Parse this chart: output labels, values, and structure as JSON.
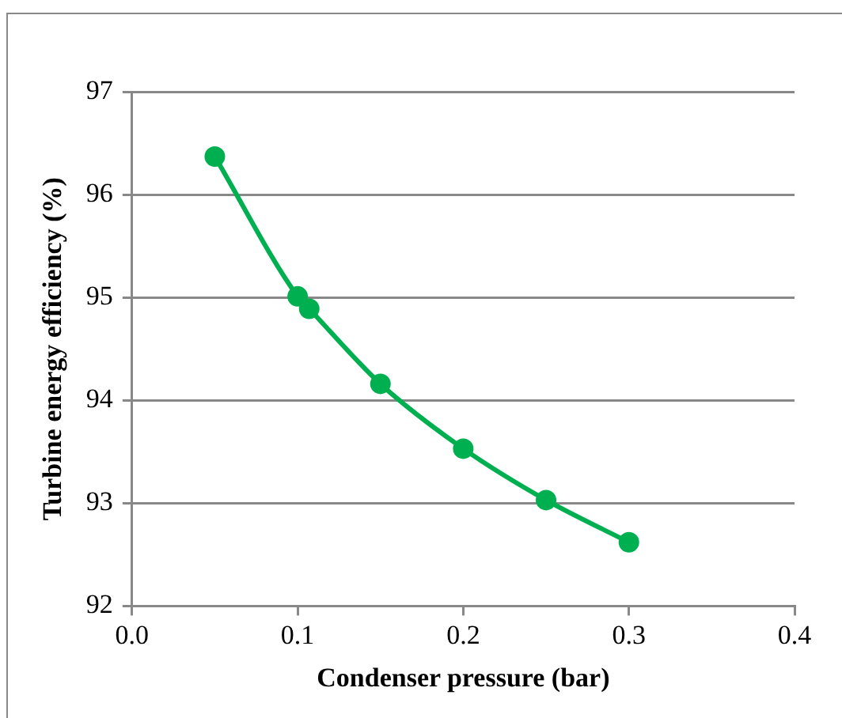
{
  "chart_data": {
    "type": "line",
    "xlabel": "Condenser pressure (bar)",
    "ylabel": "Turbine energy efficiency (%)",
    "x": [
      0.05,
      0.1,
      0.107,
      0.15,
      0.2,
      0.25,
      0.3
    ],
    "series": [
      {
        "color": "#00b050",
        "values": [
          96.37,
          95.01,
          94.89,
          94.16,
          93.53,
          93.03,
          92.62
        ]
      }
    ],
    "xlim": [
      0,
      0.4
    ],
    "xticks": [
      {
        "value": 0,
        "label": "0.0"
      },
      {
        "value": 0.1,
        "label": "0.1"
      },
      {
        "value": 0.2,
        "label": "0.2"
      },
      {
        "value": 0.3,
        "label": "0.3"
      },
      {
        "value": 0.4,
        "label": "0.4"
      }
    ],
    "ylim": [
      92,
      97
    ],
    "yticks": [
      92,
      93,
      94,
      95,
      96,
      97
    ],
    "grid": "y",
    "legend": false,
    "marker": "circle",
    "line_style": "solid"
  }
}
